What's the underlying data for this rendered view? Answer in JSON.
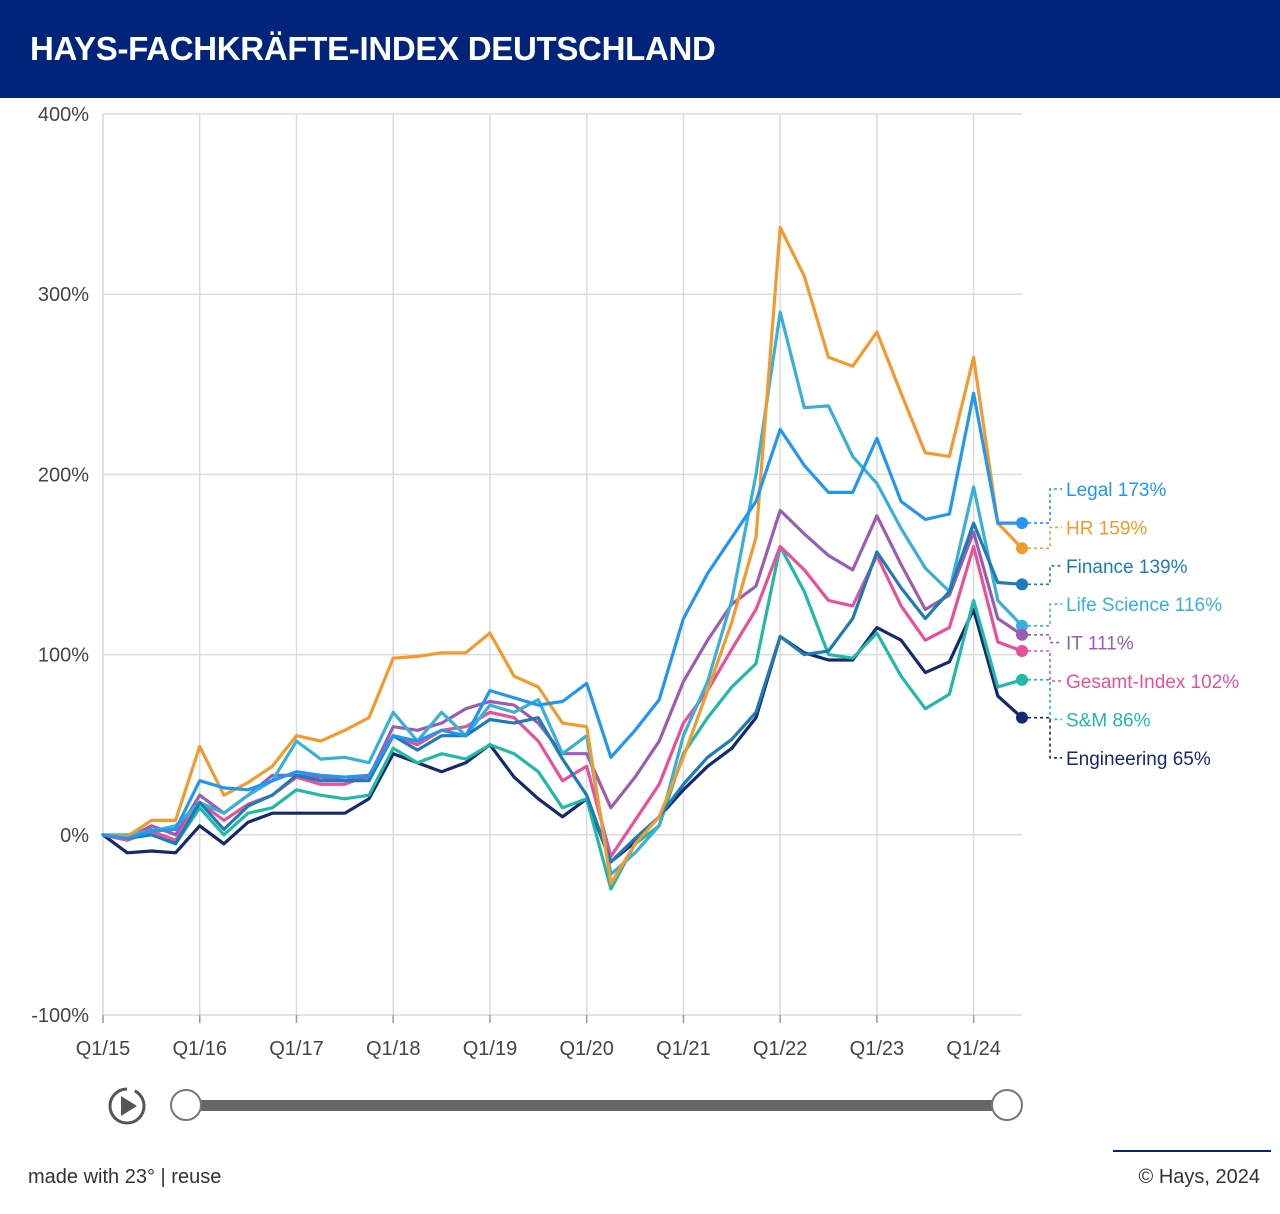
{
  "header": {
    "title": "HAYS-FACHKRÄFTE-INDEX DEUTSCHLAND"
  },
  "footer": {
    "made_with": "made with 23°",
    "separator": "|",
    "reuse": "reuse",
    "copyright": "© Hays, 2024"
  },
  "slider": {
    "range": [
      "Q1/15",
      "Q3/24"
    ]
  },
  "chart_data": {
    "type": "line",
    "title": "HAYS-FACHKRÄFTE-INDEX DEUTSCHLAND",
    "xlabel": "",
    "ylabel": "",
    "ylim": [
      -100,
      400
    ],
    "y_ticks": [
      -100,
      0,
      100,
      200,
      300,
      400
    ],
    "y_tick_labels": [
      "-100%",
      "0%",
      "100%",
      "200%",
      "300%",
      "400%"
    ],
    "x_tick_labels": [
      "Q1/15",
      "Q1/16",
      "Q1/17",
      "Q1/18",
      "Q1/19",
      "Q1/20",
      "Q1/21",
      "Q1/22",
      "Q1/23",
      "Q1/24"
    ],
    "x": [
      "Q1/15",
      "Q2/15",
      "Q3/15",
      "Q4/15",
      "Q1/16",
      "Q2/16",
      "Q3/16",
      "Q4/16",
      "Q1/17",
      "Q2/17",
      "Q3/17",
      "Q4/17",
      "Q1/18",
      "Q2/18",
      "Q3/18",
      "Q4/18",
      "Q1/19",
      "Q2/19",
      "Q3/19",
      "Q4/19",
      "Q1/20",
      "Q2/20",
      "Q3/20",
      "Q4/20",
      "Q1/21",
      "Q2/21",
      "Q3/21",
      "Q4/21",
      "Q1/22",
      "Q2/22",
      "Q3/22",
      "Q4/22",
      "Q1/23",
      "Q2/23",
      "Q3/23",
      "Q4/23",
      "Q1/24",
      "Q2/24",
      "Q3/24"
    ],
    "grid": true,
    "legend": "end labels right",
    "series": [
      {
        "name": "Legal",
        "label": "Legal 173%",
        "color": "#2196f3",
        "values": [
          0,
          -2,
          2,
          3,
          30,
          26,
          25,
          30,
          35,
          33,
          32,
          33,
          55,
          52,
          58,
          55,
          80,
          76,
          72,
          74,
          84,
          43,
          58,
          75,
          120,
          145,
          165,
          185,
          225,
          205,
          190,
          190,
          220,
          185,
          175,
          178,
          245,
          173,
          173
        ]
      },
      {
        "name": "HR",
        "label": "HR 159%",
        "color": "#f39a2e",
        "values": [
          0,
          -1,
          8,
          8,
          49,
          22,
          29,
          38,
          55,
          52,
          58,
          65,
          98,
          99,
          101,
          101,
          112,
          88,
          82,
          62,
          60,
          -27,
          -5,
          10,
          43,
          80,
          118,
          165,
          337,
          310,
          265,
          260,
          279,
          245,
          212,
          210,
          265,
          173,
          159
        ]
      },
      {
        "name": "Finance",
        "label": "Finance 139%",
        "color": "#1d7bb5",
        "values": [
          0,
          -2,
          0,
          -5,
          18,
          3,
          16,
          22,
          33,
          30,
          30,
          30,
          55,
          47,
          55,
          55,
          64,
          62,
          65,
          42,
          22,
          -15,
          -2,
          10,
          28,
          43,
          53,
          68,
          110,
          100,
          102,
          120,
          157,
          137,
          120,
          135,
          173,
          140,
          139
        ]
      },
      {
        "name": "Life Science",
        "label": "Life Science 116%",
        "color": "#38b0d8",
        "values": [
          0,
          0,
          2,
          5,
          18,
          12,
          22,
          30,
          52,
          42,
          43,
          40,
          68,
          52,
          68,
          55,
          72,
          68,
          75,
          45,
          55,
          -22,
          -10,
          5,
          55,
          85,
          130,
          200,
          290,
          237,
          238,
          210,
          195,
          170,
          148,
          135,
          193,
          130,
          116
        ]
      },
      {
        "name": "IT",
        "label": "IT 111%",
        "color": "#9b5cb4",
        "values": [
          0,
          -2,
          5,
          0,
          22,
          12,
          22,
          33,
          33,
          32,
          30,
          32,
          60,
          58,
          62,
          70,
          74,
          72,
          62,
          45,
          45,
          15,
          32,
          52,
          85,
          108,
          128,
          138,
          180,
          167,
          155,
          147,
          177,
          150,
          125,
          133,
          168,
          120,
          111
        ]
      },
      {
        "name": "Gesamt-Index",
        "label": "Gesamt-Index 102%",
        "color": "#e8509a",
        "values": [
          0,
          -3,
          2,
          -3,
          18,
          8,
          17,
          22,
          32,
          28,
          28,
          33,
          55,
          50,
          58,
          60,
          68,
          65,
          52,
          30,
          38,
          -12,
          8,
          28,
          62,
          80,
          103,
          125,
          160,
          147,
          130,
          127,
          155,
          127,
          108,
          115,
          160,
          107,
          102
        ]
      },
      {
        "name": "S&M",
        "label": "S&M 86%",
        "color": "#22b8a7",
        "values": [
          0,
          -3,
          3,
          -5,
          15,
          0,
          12,
          15,
          25,
          22,
          20,
          22,
          48,
          40,
          45,
          42,
          50,
          45,
          35,
          15,
          20,
          -30,
          -5,
          5,
          45,
          65,
          82,
          95,
          160,
          135,
          100,
          98,
          112,
          88,
          70,
          78,
          130,
          82,
          86
        ]
      },
      {
        "name": "Engineering",
        "label": "Engineering 65%",
        "color": "#152a6e",
        "values": [
          0,
          -10,
          -9,
          -10,
          5,
          -5,
          7,
          12,
          12,
          12,
          12,
          20,
          45,
          40,
          35,
          40,
          50,
          32,
          20,
          10,
          20,
          -15,
          -4,
          10,
          25,
          38,
          48,
          65,
          110,
          101,
          97,
          97,
          115,
          108,
          90,
          96,
          125,
          77,
          65
        ]
      }
    ]
  }
}
